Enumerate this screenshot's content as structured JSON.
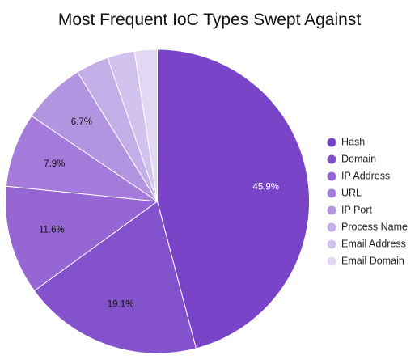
{
  "chart_data": {
    "type": "pie",
    "title": "Most Frequent IoC Types Swept Against",
    "categories": [
      "Hash",
      "Domain",
      "IP Address",
      "URL",
      "IP Port",
      "Process Name",
      "Email Address",
      "Email Domain"
    ],
    "values": [
      45.9,
      19.1,
      11.6,
      7.9,
      6.7,
      3.5,
      2.9,
      2.4
    ],
    "data_labels": [
      "45.9%",
      "19.1%",
      "11.6%",
      "7.9%",
      "6.7%",
      "",
      "",
      ""
    ],
    "colors": [
      "#7a44c9",
      "#8352cc",
      "#9566d4",
      "#a47bda",
      "#b394e1",
      "#c3aee8",
      "#d2c3ee",
      "#e2d8f4"
    ],
    "label_colors": [
      "#ffffff",
      "#111111",
      "#111111",
      "#111111",
      "#111111",
      "#111111",
      "#111111",
      "#111111"
    ],
    "legend_position": "right",
    "start_angle": "12 o'clock",
    "direction": "clockwise"
  }
}
